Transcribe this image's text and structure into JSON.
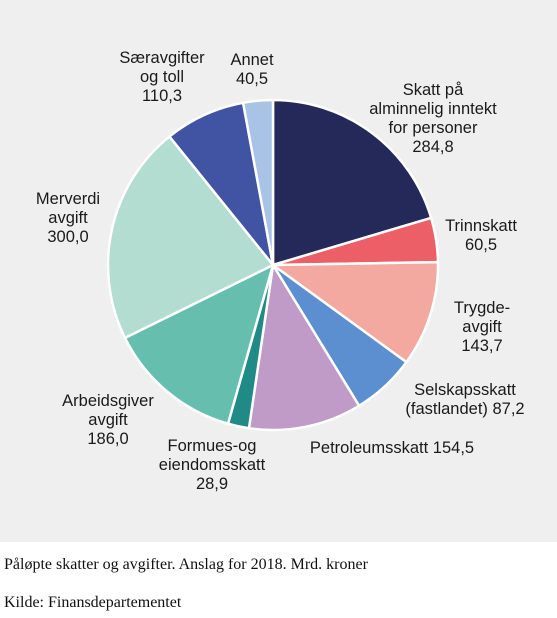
{
  "caption": "Påløpte skatter og avgifter. Anslag for 2018. Mrd. kroner",
  "source": "Kilde: Finansdepartementet",
  "chart_data": {
    "type": "pie",
    "unit": "Mrd. kroner",
    "slices": [
      {
        "label_lines": [
          "Skatt på",
          "alminnelig inntekt",
          "for personer",
          "284,8"
        ],
        "value": 284.8,
        "color": "#25295a"
      },
      {
        "label_lines": [
          "Trinnskatt",
          "60,5"
        ],
        "value": 60.5,
        "color": "#ec5f66"
      },
      {
        "label_lines": [
          "Trygde-",
          "avgift",
          "143,7"
        ],
        "value": 143.7,
        "color": "#f4a9a0"
      },
      {
        "label_lines": [
          "Selskapsskatt",
          "(fastlandet) 87,2"
        ],
        "value": 87.2,
        "color": "#5b8fd0"
      },
      {
        "label_lines": [
          "Petroleumsskatt 154,5"
        ],
        "value": 154.5,
        "color": "#c09bc8"
      },
      {
        "label_lines": [
          "Formues-og",
          "eiendomsskatt",
          "28,9"
        ],
        "value": 28.9,
        "color": "#1f8a86"
      },
      {
        "label_lines": [
          "Arbeidsgiver",
          "avgift",
          "186,0"
        ],
        "value": 186.0,
        "color": "#66bfae"
      },
      {
        "label_lines": [
          "Merverdi",
          "avgift",
          "300,0"
        ],
        "value": 300.0,
        "color": "#b3ddd1"
      },
      {
        "label_lines": [
          "Særavgifter",
          "og toll",
          "110,3"
        ],
        "value": 110.3,
        "color": "#4153a3"
      },
      {
        "label_lines": [
          "Annet",
          "40,5"
        ],
        "value": 40.5,
        "color": "#a9c3e6"
      }
    ]
  }
}
